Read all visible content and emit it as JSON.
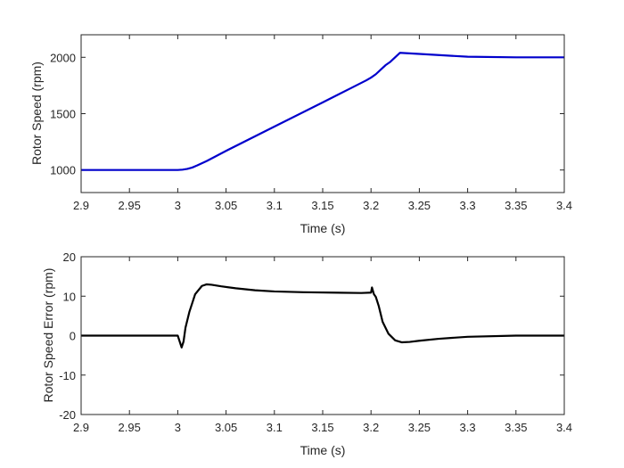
{
  "chart_data": [
    {
      "type": "line",
      "xlabel": "Time (s)",
      "ylabel": "Rotor Speed (rpm)",
      "xlim": [
        2.9,
        3.4
      ],
      "ylim": [
        800,
        2200
      ],
      "xticks": [
        "2.9",
        "2.95",
        "3",
        "3.05",
        "3.1",
        "3.15",
        "3.2",
        "3.25",
        "3.3",
        "3.35",
        "3.4"
      ],
      "yticks": [
        "1000",
        "1500",
        "2000"
      ],
      "grid": false,
      "series": [
        {
          "color": "#0000cc",
          "x": [
            2.9,
            2.95,
            3.0,
            3.005,
            3.01,
            3.015,
            3.02,
            3.03,
            3.05,
            3.1,
            3.15,
            3.18,
            3.195,
            3.2,
            3.205,
            3.21,
            3.215,
            3.22,
            3.23,
            3.25,
            3.3,
            3.35,
            3.4
          ],
          "y": [
            1000,
            1000,
            1000,
            1003,
            1010,
            1022,
            1040,
            1080,
            1170,
            1385,
            1600,
            1730,
            1795,
            1820,
            1850,
            1890,
            1930,
            1960,
            2040,
            2030,
            2005,
            2000,
            2000
          ]
        }
      ]
    },
    {
      "type": "line",
      "xlabel": "Time (s)",
      "ylabel": "Rotor Speed Error (rpm)",
      "xlim": [
        2.9,
        3.4
      ],
      "ylim": [
        -20,
        20
      ],
      "xticks": [
        "2.9",
        "2.95",
        "3",
        "3.05",
        "3.1",
        "3.15",
        "3.2",
        "3.25",
        "3.3",
        "3.35",
        "3.4"
      ],
      "yticks": [
        "-20",
        "-10",
        "0",
        "10",
        "20"
      ],
      "grid": false,
      "series": [
        {
          "color": "#000000",
          "x": [
            2.9,
            2.95,
            3.0,
            3.002,
            3.004,
            3.006,
            3.008,
            3.012,
            3.018,
            3.025,
            3.03,
            3.035,
            3.045,
            3.06,
            3.08,
            3.1,
            3.13,
            3.16,
            3.19,
            3.2,
            3.201,
            3.203,
            3.205,
            3.208,
            3.212,
            3.218,
            3.225,
            3.232,
            3.24,
            3.25,
            3.27,
            3.3,
            3.35,
            3.4
          ],
          "y": [
            0,
            0,
            0,
            -1.5,
            -3.0,
            -1.5,
            2.0,
            6.0,
            10.5,
            12.6,
            13.0,
            12.9,
            12.5,
            12.0,
            11.5,
            11.2,
            11.0,
            10.9,
            10.8,
            10.9,
            12.2,
            10.5,
            9.8,
            7.5,
            3.5,
            0.5,
            -1.2,
            -1.7,
            -1.6,
            -1.3,
            -0.8,
            -0.3,
            0.0,
            0.0
          ]
        }
      ]
    }
  ]
}
